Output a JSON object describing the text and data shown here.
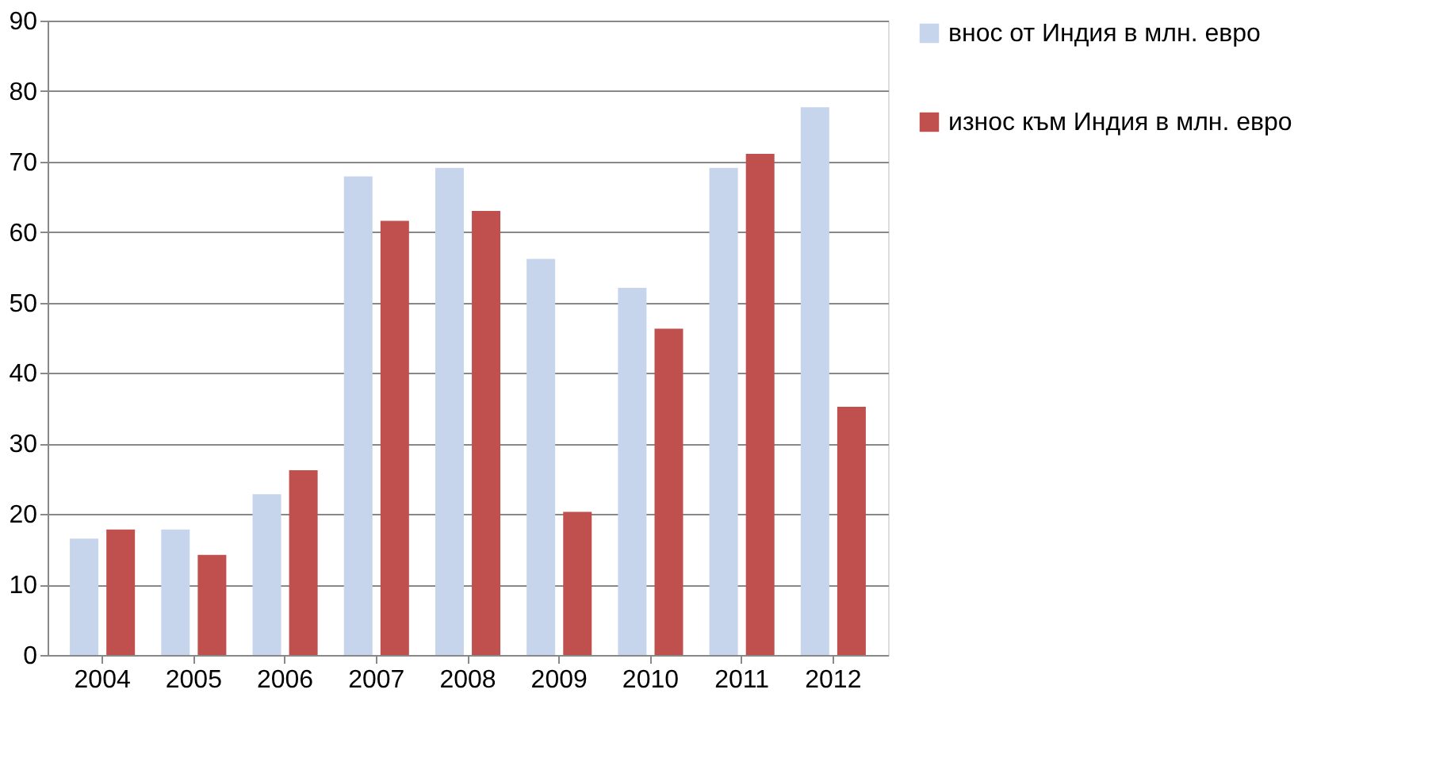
{
  "chart_data": {
    "type": "bar",
    "categories": [
      "2004",
      "2005",
      "2006",
      "2007",
      "2008",
      "2009",
      "2010",
      "2011",
      "2012"
    ],
    "series": [
      {
        "name": "внос от Индия в млн. евро",
        "color": "#c6d5ec",
        "values": [
          16.5,
          17.8,
          22.8,
          67.9,
          69.1,
          56.2,
          52.1,
          69.1,
          77.7
        ]
      },
      {
        "name": "износ към Индия в млн. евро",
        "color": "#c0504d",
        "values": [
          17.8,
          14.2,
          26.2,
          61.6,
          63,
          20.3,
          46.3,
          71.1,
          35.2
        ]
      }
    ],
    "ylim": [
      0,
      90
    ],
    "yticks": [
      0,
      10,
      20,
      30,
      40,
      50,
      60,
      70,
      80,
      90
    ],
    "grid": "y",
    "legend": "right"
  }
}
